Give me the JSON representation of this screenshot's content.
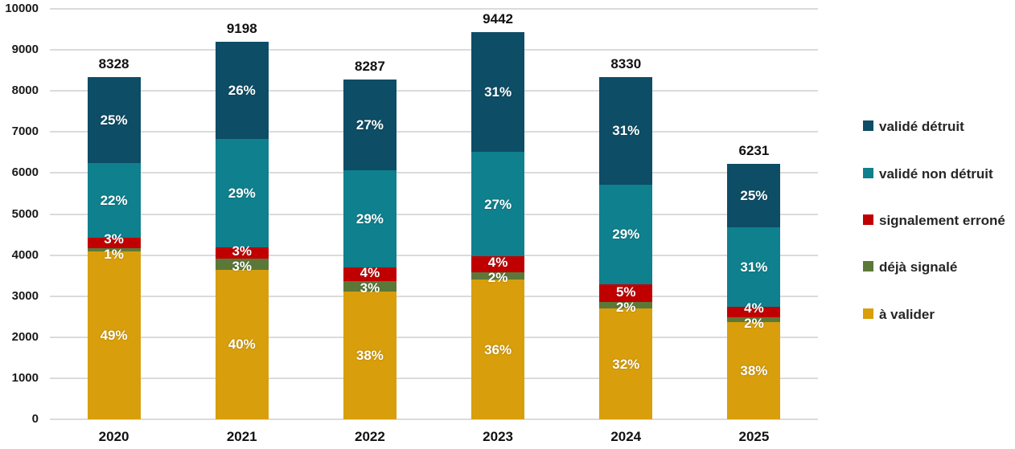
{
  "figure": {
    "background": "#FFFFFF"
  },
  "chart_data": {
    "type": "bar",
    "stacked": true,
    "title": "",
    "xlabel": "",
    "ylabel": "",
    "categories": [
      "2020",
      "2021",
      "2022",
      "2023",
      "2024",
      "2025"
    ],
    "totals": [
      8328,
      9198,
      8287,
      9442,
      8330,
      6231
    ],
    "total_labels": [
      "8328",
      "9198",
      "8287",
      "9442",
      "8330",
      "6231"
    ],
    "series": [
      {
        "name": "à valider",
        "color": "#D89E0C",
        "pct": [
          49,
          40,
          38,
          36,
          32,
          38
        ]
      },
      {
        "name": "déjà signalé",
        "color": "#5C7839",
        "pct": [
          1,
          3,
          3,
          2,
          2,
          2
        ]
      },
      {
        "name": "signalement erroné",
        "color": "#C00000",
        "pct": [
          3,
          3,
          4,
          4,
          5,
          4
        ]
      },
      {
        "name": "validé non détruit",
        "color": "#0F808D",
        "pct": [
          22,
          29,
          29,
          27,
          29,
          31
        ]
      },
      {
        "name": "validé détruit",
        "color": "#0D4D66",
        "pct": [
          25,
          26,
          27,
          31,
          31,
          25
        ]
      }
    ],
    "data_label_suffix": "%",
    "y_axis": {
      "min": 0,
      "max": 10000,
      "step": 1000,
      "tick_labels": [
        "0",
        "1000",
        "2000",
        "3000",
        "4000",
        "5000",
        "6000",
        "7000",
        "8000",
        "9000",
        "10000"
      ]
    },
    "grid": true,
    "legend_position": "right",
    "legend": [
      {
        "label": "validé détruit",
        "color": "#0D4D66"
      },
      {
        "label": "validé non détruit",
        "color": "#0F808D"
      },
      {
        "label": "signalement erroné",
        "color": "#C00000"
      },
      {
        "label": "déjà signalé",
        "color": "#5C7839"
      },
      {
        "label": "à valider",
        "color": "#D89E0C"
      }
    ]
  }
}
